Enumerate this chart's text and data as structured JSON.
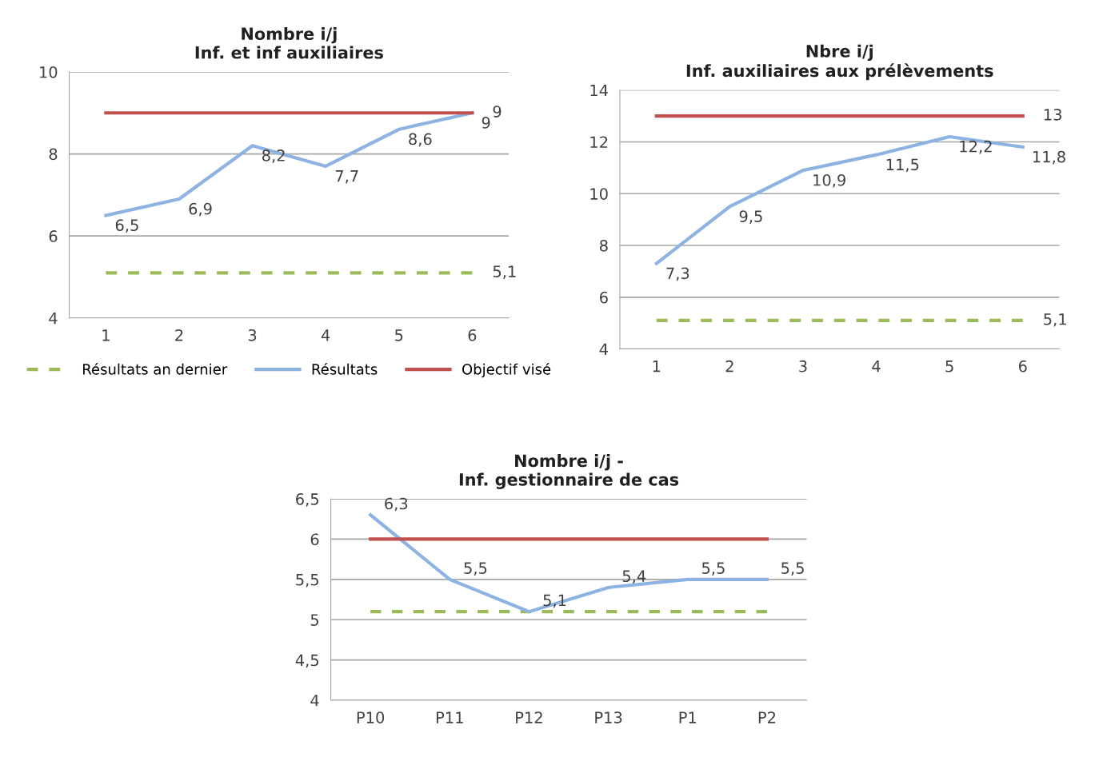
{
  "chart_data": [
    {
      "type": "line",
      "title": "Nombre i/j\nInf. et inf auxiliaires",
      "categories": [
        "1",
        "2",
        "3",
        "4",
        "5",
        "6"
      ],
      "ylim": [
        4,
        10
      ],
      "yticks": [
        4,
        6,
        8,
        10
      ],
      "grid": "y",
      "legend": "bottom",
      "marker": "none",
      "series": [
        {
          "name": "Résultats an dernier",
          "color": "#9bbb59",
          "line_style": "dashed",
          "values": [
            5.1,
            5.1,
            5.1,
            5.1,
            5.1,
            5.1
          ],
          "value_labels": [
            null,
            null,
            null,
            null,
            null,
            "5,1"
          ]
        },
        {
          "name": "Résultats",
          "color": "#8db3e2",
          "line_style": "solid",
          "values": [
            6.5,
            6.9,
            8.2,
            7.7,
            8.6,
            9
          ],
          "value_labels": [
            "6,5",
            "6,9",
            "8,2",
            "7,7",
            "8,6",
            "9"
          ]
        },
        {
          "name": "Objectif visé",
          "color": "#c0504d",
          "line_style": "solid",
          "values": [
            9,
            9,
            9,
            9,
            9,
            9
          ],
          "value_labels": [
            null,
            null,
            null,
            null,
            null,
            "9"
          ]
        }
      ]
    },
    {
      "type": "line",
      "title": "Nbre i/j\nInf. auxiliaires aux prélèvements",
      "categories": [
        "1",
        "2",
        "3",
        "4",
        "5",
        "6"
      ],
      "ylim": [
        4,
        14
      ],
      "yticks": [
        4,
        6,
        8,
        10,
        12,
        14
      ],
      "grid": "y",
      "legend": false,
      "marker": "none",
      "series": [
        {
          "color": "#9bbb59",
          "line_style": "dashed",
          "values": [
            5.1,
            5.1,
            5.1,
            5.1,
            5.1,
            5.1
          ],
          "value_labels": [
            null,
            null,
            null,
            null,
            null,
            "5,1"
          ]
        },
        {
          "color": "#8db3e2",
          "line_style": "solid",
          "values": [
            7.3,
            9.5,
            10.9,
            11.5,
            12.2,
            11.8
          ],
          "value_labels": [
            "7,3",
            "9,5",
            "10,9",
            "11,5",
            "12,2",
            "11,8"
          ]
        },
        {
          "color": "#c0504d",
          "line_style": "solid",
          "values": [
            13,
            13,
            13,
            13,
            13,
            13
          ],
          "value_labels": [
            null,
            null,
            null,
            null,
            null,
            "13"
          ]
        }
      ]
    },
    {
      "type": "line",
      "title": "Nombre i/j -\nInf. gestionnaire de cas",
      "categories": [
        "P10",
        "P11",
        "P12",
        "P13",
        "P1",
        "P2"
      ],
      "ylim": [
        4,
        6.5
      ],
      "yticks": [
        4,
        {
          "value": 4.5,
          "label": "4,5"
        },
        5,
        {
          "value": 5.5,
          "label": "5,5"
        },
        6,
        {
          "value": 6.5,
          "label": "6,5"
        }
      ],
      "grid": "y",
      "legend": false,
      "marker": "none",
      "series": [
        {
          "color": "#9bbb59",
          "line_style": "dashed",
          "values": [
            5.1,
            5.1,
            5.1,
            5.1,
            5.1,
            5.1
          ]
        },
        {
          "color": "#8db3e2",
          "line_style": "solid",
          "values": [
            6.3,
            5.5,
            5.1,
            5.4,
            5.5,
            5.5
          ],
          "value_labels": [
            "6,3",
            "5,5",
            "5,1",
            "5,4",
            "5,5",
            "5,5"
          ]
        },
        {
          "color": "#c0504d",
          "line_style": "solid",
          "values": [
            6,
            6,
            6,
            6,
            6,
            6
          ]
        }
      ]
    }
  ]
}
